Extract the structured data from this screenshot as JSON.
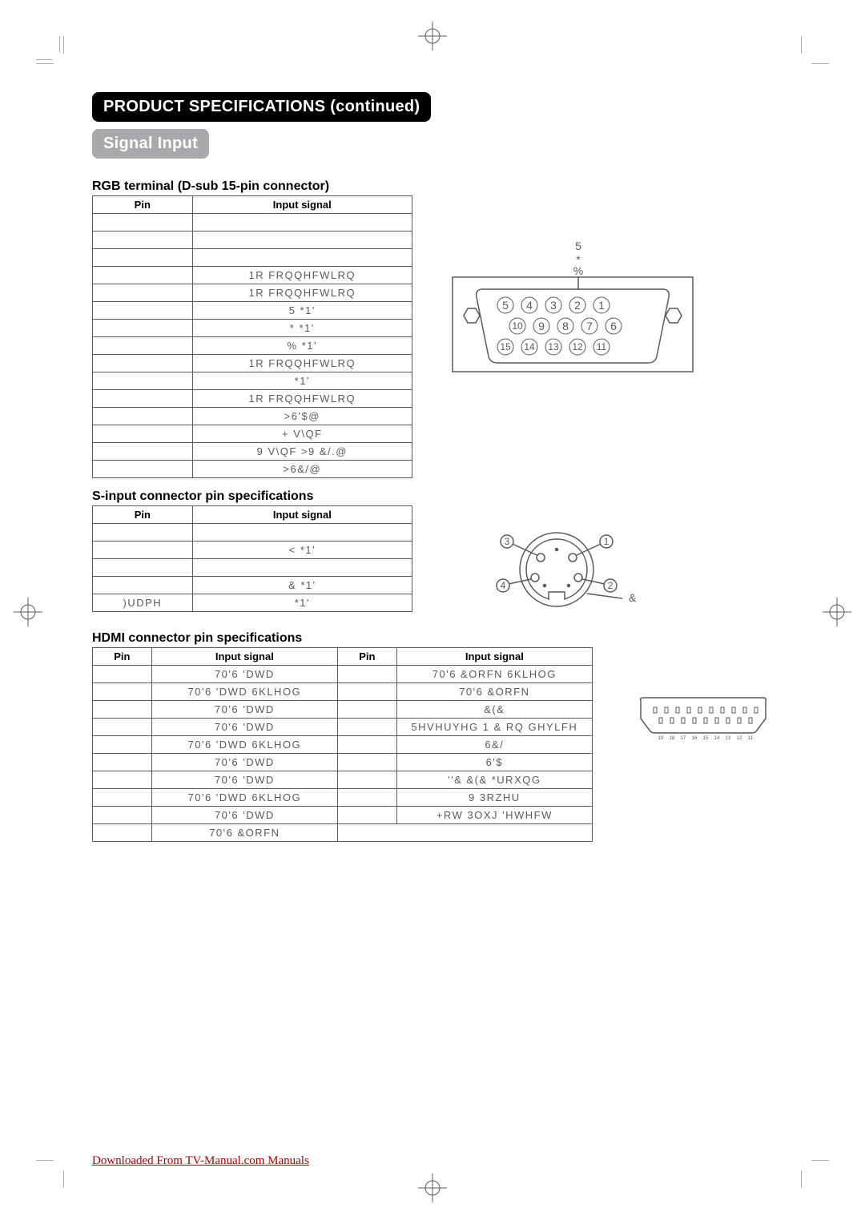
{
  "header_black": "PRODUCT SPECIFICATIONS (continued)",
  "header_gray": "Signal Input",
  "rgb": {
    "title": "RGB terminal (D-sub 15-pin connector)",
    "th_pin": "Pin",
    "th_sig": "Input signal",
    "rows": [
      {
        "pin": "",
        "sig": ""
      },
      {
        "pin": "",
        "sig": ""
      },
      {
        "pin": "",
        "sig": ""
      },
      {
        "pin": "",
        "sig": "1R FRQQHFWLRQ"
      },
      {
        "pin": "",
        "sig": "1R FRQQHFWLRQ"
      },
      {
        "pin": "",
        "sig": "5 *1'"
      },
      {
        "pin": "",
        "sig": "* *1'"
      },
      {
        "pin": "",
        "sig": "% *1'"
      },
      {
        "pin": "",
        "sig": "1R FRQQHFWLRQ"
      },
      {
        "pin": "",
        "sig": "*1'"
      },
      {
        "pin": "",
        "sig": "1R FRQQHFWLRQ"
      },
      {
        "pin": "",
        "sig": ">6'$@"
      },
      {
        "pin": "",
        "sig": "+ V\\QF"
      },
      {
        "pin": "",
        "sig": "9 V\\QF >9 &/.@"
      },
      {
        "pin": "",
        "sig": ">6&/@"
      }
    ],
    "dsub_label_r": "5",
    "dsub_label_b": "%"
  },
  "svideo": {
    "title": "S-input connector pin specifications",
    "th_pin": "Pin",
    "th_sig": "Input signal",
    "rows": [
      {
        "pin": "",
        "sig": ""
      },
      {
        "pin": "",
        "sig": "< *1'"
      },
      {
        "pin": "",
        "sig": ""
      },
      {
        "pin": "",
        "sig": "& *1'"
      },
      {
        "pin": ")UDPH",
        "sig": "*1'"
      }
    ],
    "amp": "&"
  },
  "hdmi": {
    "title": "HDMI connector pin specifications",
    "th_pin": "Pin",
    "th_sig": "Input signal",
    "rows": [
      {
        "p1": "",
        "s1": "70'6 'DWD",
        "p2": "",
        "s2": "70'6 &ORFN 6KLHOG"
      },
      {
        "p1": "",
        "s1": "70'6 'DWD 6KLHOG",
        "p2": "",
        "s2": "70'6 &ORFN"
      },
      {
        "p1": "",
        "s1": "70'6 'DWD",
        "p2": "",
        "s2": "&(&"
      },
      {
        "p1": "",
        "s1": "70'6 'DWD",
        "p2": "",
        "s2": "5HVHUYHG 1 & RQ GHYLFH"
      },
      {
        "p1": "",
        "s1": "70'6 'DWD 6KLHOG",
        "p2": "",
        "s2": "6&/"
      },
      {
        "p1": "",
        "s1": "70'6 'DWD",
        "p2": "",
        "s2": "6'$"
      },
      {
        "p1": "",
        "s1": "70'6 'DWD",
        "p2": "",
        "s2": "''& &(& *URXQG"
      },
      {
        "p1": "",
        "s1": "70'6 'DWD 6KLHOG",
        "p2": "",
        "s2": "9 3RZHU"
      },
      {
        "p1": "",
        "s1": "70'6 'DWD",
        "p2": "",
        "s2": "+RW 3OXJ 'HWHFW"
      },
      {
        "p1": "",
        "s1": "70'6 &ORFN",
        "p2": "",
        "s2": ""
      }
    ]
  },
  "footer": "Downloaded From TV-Manual.com Manuals",
  "colors": {
    "text": "#58595b",
    "black": "#000",
    "gray_tab": "#a7a9ac",
    "link": "#a00"
  }
}
